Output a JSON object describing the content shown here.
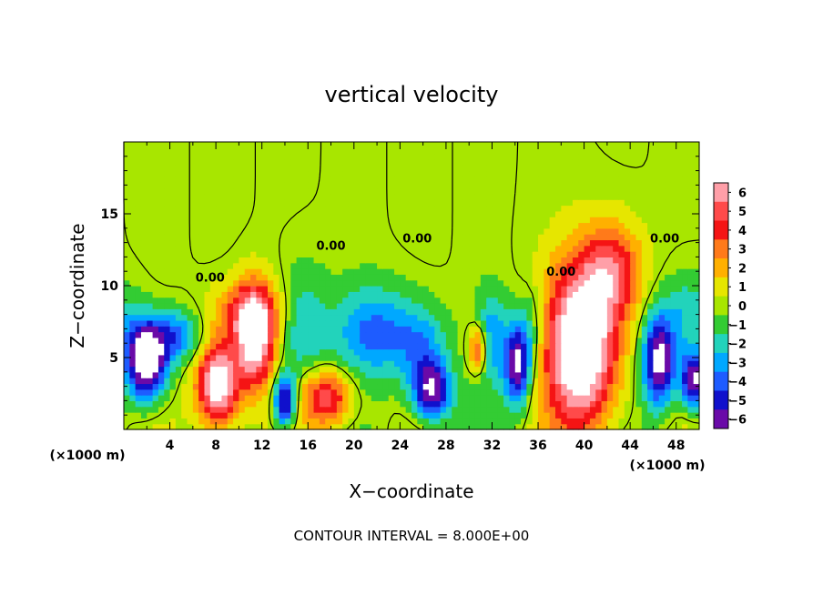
{
  "chart_data": {
    "type": "heatmap",
    "title": "vertical velocity",
    "xlabel": "X−coordinate",
    "ylabel": "Z−coordinate",
    "x_unit_left": "(×1000 m)",
    "x_unit_right": "(×1000 m)",
    "xlim": [
      0,
      50
    ],
    "ylim": [
      0,
      20
    ],
    "x_ticks": [
      4,
      8,
      12,
      16,
      20,
      24,
      28,
      32,
      36,
      40,
      44,
      48
    ],
    "y_ticks": [
      5,
      10,
      15
    ],
    "x_tick_labels": [
      "4",
      "8",
      "12",
      "16",
      "20",
      "24",
      "28",
      "32",
      "36",
      "40",
      "44",
      "48"
    ],
    "y_tick_labels": [
      "5",
      "10",
      "15"
    ],
    "colorbar_range": [
      -6,
      6
    ],
    "colorbar_labels": [
      "6",
      "5",
      "4",
      "3",
      "2",
      "1",
      "0",
      "−1",
      "−2",
      "−3",
      "−4",
      "−5",
      "−6"
    ],
    "colorbar_colors": [
      "#ff9fa8",
      "#ff4a4a",
      "#f51414",
      "#ff7a1a",
      "#ffb000",
      "#e6e600",
      "#a8e600",
      "#33cc33",
      "#22d3bb",
      "#00a8ff",
      "#1e5cff",
      "#1010cc",
      "#6a0aa8"
    ],
    "contour_label": "0.00",
    "contour_interval_text": "CONTOUR INTERVAL = 8.000E+00",
    "features": [
      {
        "x": 2.0,
        "z": 4.6,
        "amp": -8.5,
        "sx": 1.2,
        "sz": 1.8
      },
      {
        "x": 4.3,
        "z": 6.5,
        "amp": -4.0,
        "sx": 1.8,
        "sz": 1.3
      },
      {
        "x": 8.2,
        "z": 3.2,
        "amp": 8.5,
        "sx": 1.3,
        "sz": 2.1
      },
      {
        "x": 11.4,
        "z": 6.4,
        "amp": 8.0,
        "sx": 1.2,
        "sz": 2.4
      },
      {
        "x": 10.5,
        "z": 8.3,
        "amp": 3.0,
        "sx": 2.2,
        "sz": 1.5
      },
      {
        "x": 14.0,
        "z": 2.0,
        "amp": -6.5,
        "sx": 0.7,
        "sz": 1.3
      },
      {
        "x": 17.6,
        "z": 2.2,
        "amp": 5.5,
        "sx": 1.6,
        "sz": 1.4
      },
      {
        "x": 15.5,
        "z": 7.0,
        "amp": -2.5,
        "sx": 1.5,
        "sz": 3.0
      },
      {
        "x": 22.0,
        "z": 6.8,
        "amp": -3.8,
        "sx": 2.6,
        "sz": 2.2
      },
      {
        "x": 26.8,
        "z": 2.6,
        "amp": -6.5,
        "sx": 1.2,
        "sz": 1.4
      },
      {
        "x": 26.0,
        "z": 5.5,
        "amp": -3.0,
        "sx": 1.5,
        "sz": 2.0
      },
      {
        "x": 30.8,
        "z": 5.6,
        "amp": 4.5,
        "sx": 0.6,
        "sz": 1.1
      },
      {
        "x": 32.0,
        "z": 6.5,
        "amp": -3.0,
        "sx": 0.9,
        "sz": 2.2
      },
      {
        "x": 34.2,
        "z": 4.6,
        "amp": -7.0,
        "sx": 0.8,
        "sz": 2.0
      },
      {
        "x": 35.5,
        "z": 7.0,
        "amp": -2.0,
        "sx": 0.8,
        "sz": 2.0
      },
      {
        "x": 39.8,
        "z": 5.8,
        "amp": 9.5,
        "sx": 2.2,
        "sz": 4.0
      },
      {
        "x": 42.5,
        "z": 11.0,
        "amp": 4.5,
        "sx": 1.8,
        "sz": 2.3
      },
      {
        "x": 46.5,
        "z": 4.8,
        "amp": -7.5,
        "sx": 1.0,
        "sz": 2.3
      },
      {
        "x": 49.6,
        "z": 3.5,
        "amp": -7.0,
        "sx": 0.9,
        "sz": 1.4
      },
      {
        "x": 49.0,
        "z": 8.0,
        "amp": -2.5,
        "sx": 1.5,
        "sz": 2.0
      },
      {
        "x": 0.0,
        "z": 7.0,
        "amp": -2.0,
        "sx": 1.5,
        "sz": 2.0
      }
    ]
  }
}
